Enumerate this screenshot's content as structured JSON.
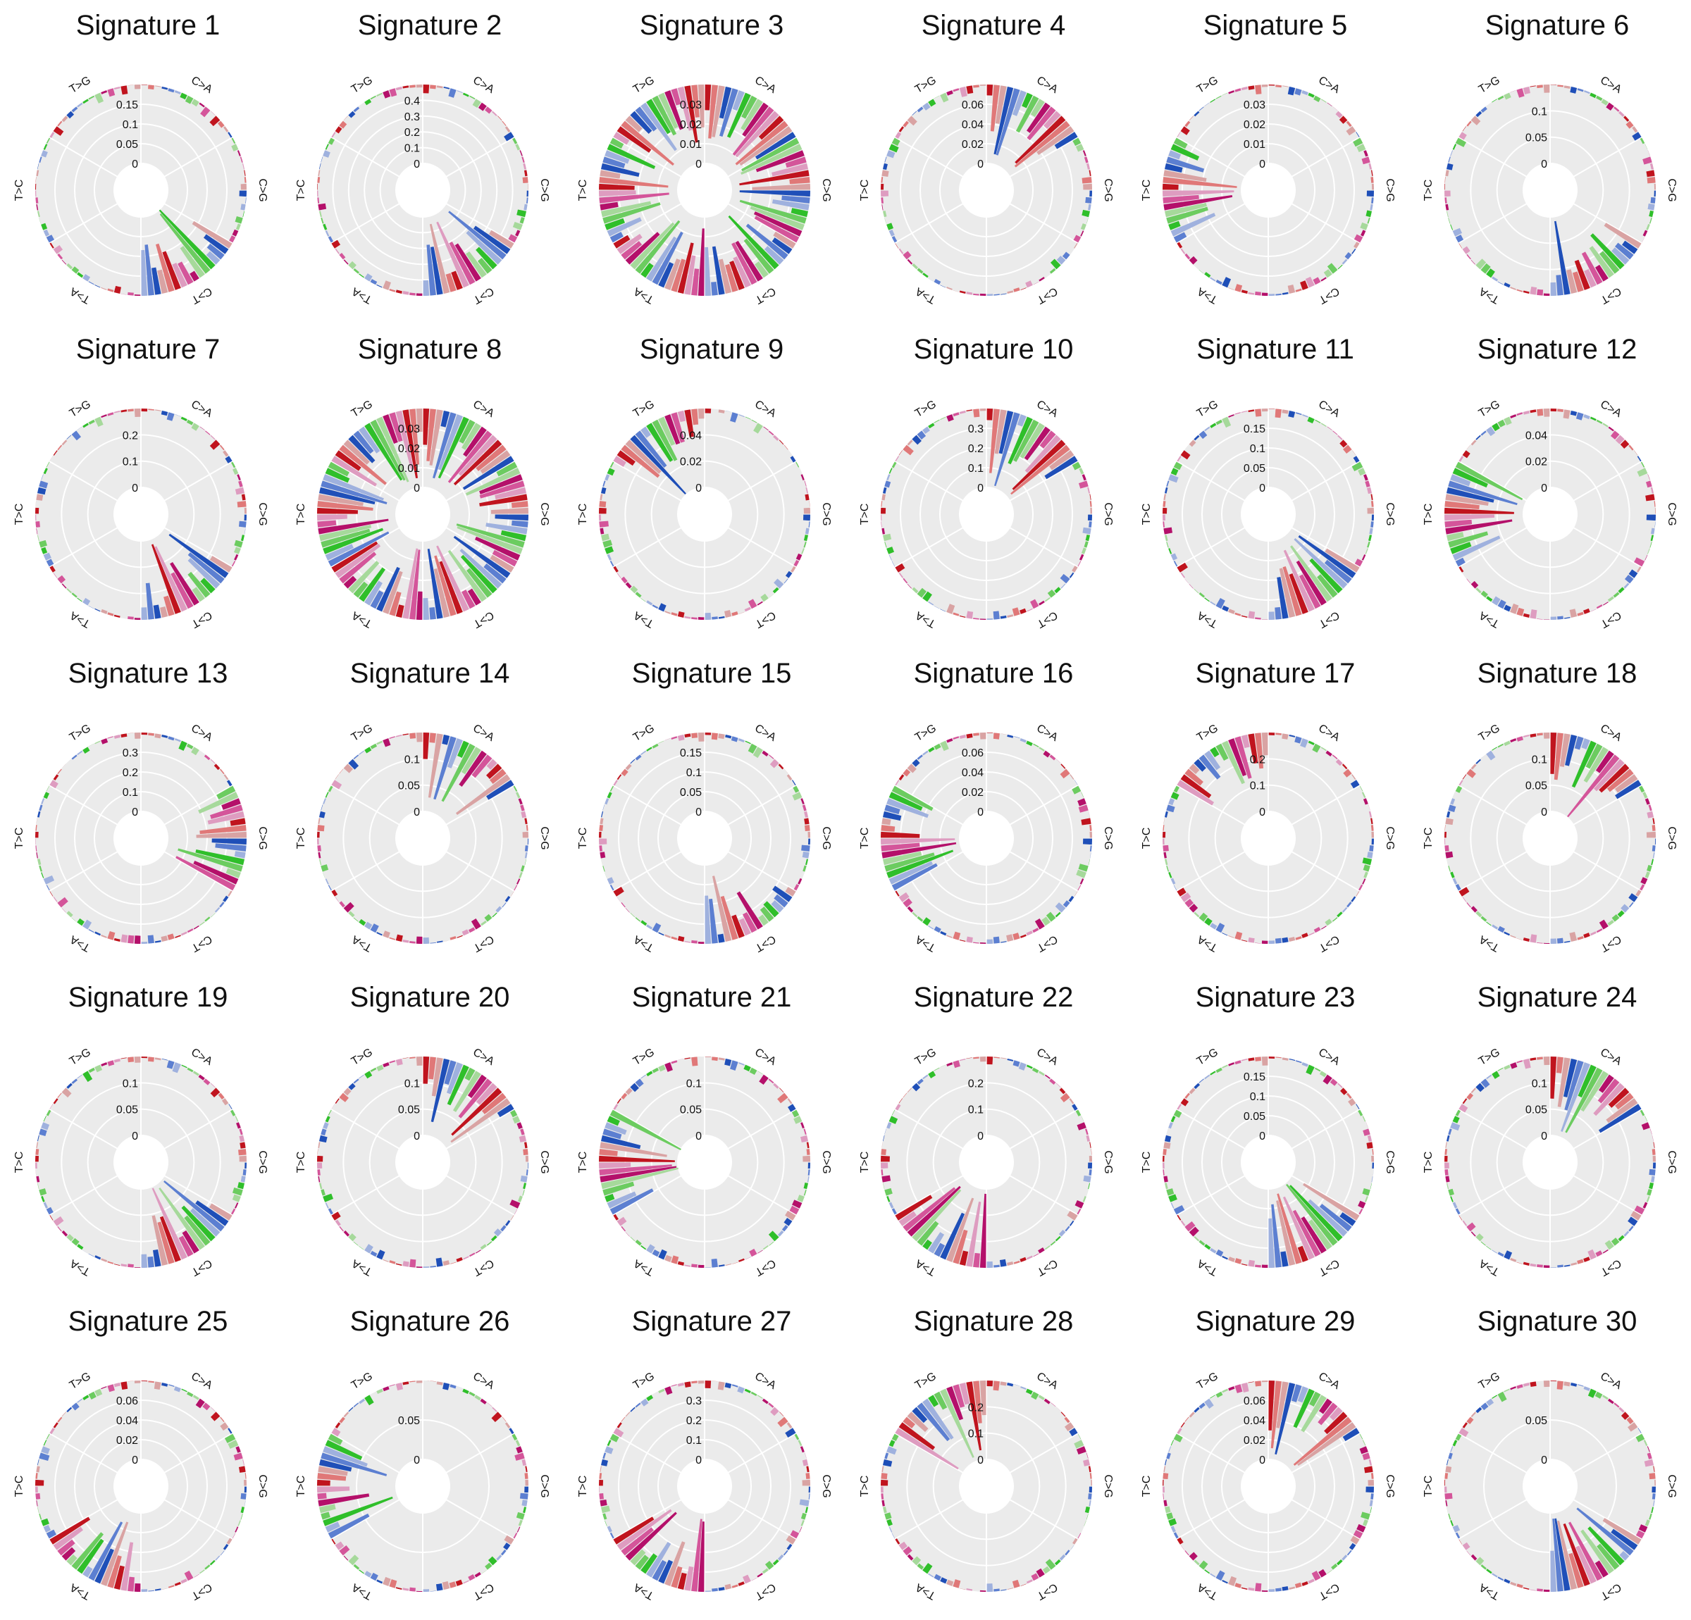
{
  "figure": {
    "colors": {
      "background": "#ebebeb",
      "grid": "#ffffff",
      "context_palette": [
        "#c0141e",
        "#e07878",
        "#d9a3a3",
        "#1f4fb8",
        "#5c7fd1",
        "#9fb1de",
        "#2fbf2a",
        "#6ccc60",
        "#a6d99b",
        "#b4106a",
        "#d4559a",
        "#de9cc0"
      ]
    },
    "category_order": [
      "C>A",
      "C>G",
      "C>T",
      "T>A",
      "T>C",
      "T>G"
    ]
  },
  "chart_data": [
    {
      "type": "radial-bar",
      "title": "Signature 1",
      "categories": [
        "C>A",
        "C>G",
        "C>T",
        "T>A",
        "T>C",
        "T>G"
      ],
      "ticks": [
        "0",
        "0.05",
        "0.1",
        "0.15"
      ],
      "max": 0.2,
      "dominant": "C>T"
    },
    {
      "type": "radial-bar",
      "title": "Signature 2",
      "categories": [
        "C>A",
        "C>G",
        "C>T",
        "T>A",
        "T>C",
        "T>G"
      ],
      "ticks": [
        "0",
        "0.1",
        "0.2",
        "0.3",
        "0.4"
      ],
      "max": 0.5,
      "dominant": "C>T"
    },
    {
      "type": "radial-bar",
      "title": "Signature 3",
      "categories": [
        "C>A",
        "C>G",
        "C>T",
        "T>A",
        "T>C",
        "T>G"
      ],
      "ticks": [
        "0",
        "0.01",
        "0.02",
        "0.03"
      ],
      "max": 0.04,
      "dominant": "flat"
    },
    {
      "type": "radial-bar",
      "title": "Signature 4",
      "categories": [
        "C>A",
        "C>G",
        "C>T",
        "T>A",
        "T>C",
        "T>G"
      ],
      "ticks": [
        "0",
        "0.02",
        "0.04",
        "0.06"
      ],
      "max": 0.08,
      "dominant": "C>A"
    },
    {
      "type": "radial-bar",
      "title": "Signature 5",
      "categories": [
        "C>A",
        "C>G",
        "C>T",
        "T>A",
        "T>C",
        "T>G"
      ],
      "ticks": [
        "0",
        "0.01",
        "0.02",
        "0.03"
      ],
      "max": 0.04,
      "dominant": "T>C"
    },
    {
      "type": "radial-bar",
      "title": "Signature 6",
      "categories": [
        "C>A",
        "C>G",
        "C>T",
        "T>A",
        "T>C",
        "T>G"
      ],
      "ticks": [
        "0",
        "0.05",
        "0.1"
      ],
      "max": 0.15,
      "dominant": "C>T"
    },
    {
      "type": "radial-bar",
      "title": "Signature 7",
      "categories": [
        "C>A",
        "C>G",
        "C>T",
        "T>A",
        "T>C",
        "T>G"
      ],
      "ticks": [
        "0",
        "0.1",
        "0.2"
      ],
      "max": 0.3,
      "dominant": "C>T"
    },
    {
      "type": "radial-bar",
      "title": "Signature 8",
      "categories": [
        "C>A",
        "C>G",
        "C>T",
        "T>A",
        "T>C",
        "T>G"
      ],
      "ticks": [
        "0",
        "0.01",
        "0.02",
        "0.03"
      ],
      "max": 0.04,
      "dominant": "flat"
    },
    {
      "type": "radial-bar",
      "title": "Signature 9",
      "categories": [
        "C>A",
        "C>G",
        "C>T",
        "T>A",
        "T>C",
        "T>G"
      ],
      "ticks": [
        "0",
        "0.02",
        "0.04"
      ],
      "max": 0.06,
      "dominant": "T>G"
    },
    {
      "type": "radial-bar",
      "title": "Signature 10",
      "categories": [
        "C>A",
        "C>G",
        "C>T",
        "T>A",
        "T>C",
        "T>G"
      ],
      "ticks": [
        "0",
        "0.1",
        "0.2",
        "0.3"
      ],
      "max": 0.4,
      "dominant": "C>A"
    },
    {
      "type": "radial-bar",
      "title": "Signature 11",
      "categories": [
        "C>A",
        "C>G",
        "C>T",
        "T>A",
        "T>C",
        "T>G"
      ],
      "ticks": [
        "0",
        "0.05",
        "0.1",
        "0.15"
      ],
      "max": 0.2,
      "dominant": "C>T"
    },
    {
      "type": "radial-bar",
      "title": "Signature 12",
      "categories": [
        "C>A",
        "C>G",
        "C>T",
        "T>A",
        "T>C",
        "T>G"
      ],
      "ticks": [
        "0",
        "0.02",
        "0.04"
      ],
      "max": 0.06,
      "dominant": "T>C"
    },
    {
      "type": "radial-bar",
      "title": "Signature 13",
      "categories": [
        "C>A",
        "C>G",
        "C>T",
        "T>A",
        "T>C",
        "T>G"
      ],
      "ticks": [
        "0",
        "0.1",
        "0.2",
        "0.3"
      ],
      "max": 0.4,
      "dominant": "C>G"
    },
    {
      "type": "radial-bar",
      "title": "Signature 14",
      "categories": [
        "C>A",
        "C>G",
        "C>T",
        "T>A",
        "T>C",
        "T>G"
      ],
      "ticks": [
        "0",
        "0.05",
        "0.1"
      ],
      "max": 0.15,
      "dominant": "C>A"
    },
    {
      "type": "radial-bar",
      "title": "Signature 15",
      "categories": [
        "C>A",
        "C>G",
        "C>T",
        "T>A",
        "T>C",
        "T>G"
      ],
      "ticks": [
        "0",
        "0.05",
        "0.1",
        "0.15"
      ],
      "max": 0.2,
      "dominant": "C>T"
    },
    {
      "type": "radial-bar",
      "title": "Signature 16",
      "categories": [
        "C>A",
        "C>G",
        "C>T",
        "T>A",
        "T>C",
        "T>G"
      ],
      "ticks": [
        "0",
        "0.02",
        "0.04",
        "0.06"
      ],
      "max": 0.08,
      "dominant": "T>C"
    },
    {
      "type": "radial-bar",
      "title": "Signature 17",
      "categories": [
        "C>A",
        "C>G",
        "C>T",
        "T>A",
        "T>C",
        "T>G"
      ],
      "ticks": [
        "0",
        "0.1",
        "0.2"
      ],
      "max": 0.3,
      "dominant": "T>G"
    },
    {
      "type": "radial-bar",
      "title": "Signature 18",
      "categories": [
        "C>A",
        "C>G",
        "C>T",
        "T>A",
        "T>C",
        "T>G"
      ],
      "ticks": [
        "0",
        "0.05",
        "0.1"
      ],
      "max": 0.15,
      "dominant": "C>A"
    },
    {
      "type": "radial-bar",
      "title": "Signature 19",
      "categories": [
        "C>A",
        "C>G",
        "C>T",
        "T>A",
        "T>C",
        "T>G"
      ],
      "ticks": [
        "0",
        "0.05",
        "0.1"
      ],
      "max": 0.15,
      "dominant": "C>T"
    },
    {
      "type": "radial-bar",
      "title": "Signature 20",
      "categories": [
        "C>A",
        "C>G",
        "C>T",
        "T>A",
        "T>C",
        "T>G"
      ],
      "ticks": [
        "0",
        "0.05",
        "0.1"
      ],
      "max": 0.15,
      "dominant": "C>A"
    },
    {
      "type": "radial-bar",
      "title": "Signature 21",
      "categories": [
        "C>A",
        "C>G",
        "C>T",
        "T>A",
        "T>C",
        "T>G"
      ],
      "ticks": [
        "0",
        "0.05",
        "0.1"
      ],
      "max": 0.15,
      "dominant": "T>C"
    },
    {
      "type": "radial-bar",
      "title": "Signature 22",
      "categories": [
        "C>A",
        "C>G",
        "C>T",
        "T>A",
        "T>C",
        "T>G"
      ],
      "ticks": [
        "0",
        "0.1",
        "0.2"
      ],
      "max": 0.3,
      "dominant": "T>A"
    },
    {
      "type": "radial-bar",
      "title": "Signature 23",
      "categories": [
        "C>A",
        "C>G",
        "C>T",
        "T>A",
        "T>C",
        "T>G"
      ],
      "ticks": [
        "0",
        "0.05",
        "0.1",
        "0.15"
      ],
      "max": 0.2,
      "dominant": "C>T"
    },
    {
      "type": "radial-bar",
      "title": "Signature 24",
      "categories": [
        "C>A",
        "C>G",
        "C>T",
        "T>A",
        "T>C",
        "T>G"
      ],
      "ticks": [
        "0",
        "0.05",
        "0.1"
      ],
      "max": 0.15,
      "dominant": "C>A"
    },
    {
      "type": "radial-bar",
      "title": "Signature 25",
      "categories": [
        "C>A",
        "C>G",
        "C>T",
        "T>A",
        "T>C",
        "T>G"
      ],
      "ticks": [
        "0",
        "0.02",
        "0.04",
        "0.06"
      ],
      "max": 0.08,
      "dominant": "T>A"
    },
    {
      "type": "radial-bar",
      "title": "Signature 26",
      "categories": [
        "C>A",
        "C>G",
        "C>T",
        "T>A",
        "T>C",
        "T>G"
      ],
      "ticks": [
        "0",
        "0.05"
      ],
      "max": 0.1,
      "dominant": "T>C"
    },
    {
      "type": "radial-bar",
      "title": "Signature 27",
      "categories": [
        "C>A",
        "C>G",
        "C>T",
        "T>A",
        "T>C",
        "T>G"
      ],
      "ticks": [
        "0",
        "0.1",
        "0.2",
        "0.3"
      ],
      "max": 0.4,
      "dominant": "T>A"
    },
    {
      "type": "radial-bar",
      "title": "Signature 28",
      "categories": [
        "C>A",
        "C>G",
        "C>T",
        "T>A",
        "T>C",
        "T>G"
      ],
      "ticks": [
        "0",
        "0.1",
        "0.2"
      ],
      "max": 0.3,
      "dominant": "T>G"
    },
    {
      "type": "radial-bar",
      "title": "Signature 29",
      "categories": [
        "C>A",
        "C>G",
        "C>T",
        "T>A",
        "T>C",
        "T>G"
      ],
      "ticks": [
        "0",
        "0.02",
        "0.04",
        "0.06"
      ],
      "max": 0.08,
      "dominant": "C>A"
    },
    {
      "type": "radial-bar",
      "title": "Signature 30",
      "categories": [
        "C>A",
        "C>G",
        "C>T",
        "T>A",
        "T>C",
        "T>G"
      ],
      "ticks": [
        "0",
        "0.05"
      ],
      "max": 0.1,
      "dominant": "C>T"
    }
  ]
}
